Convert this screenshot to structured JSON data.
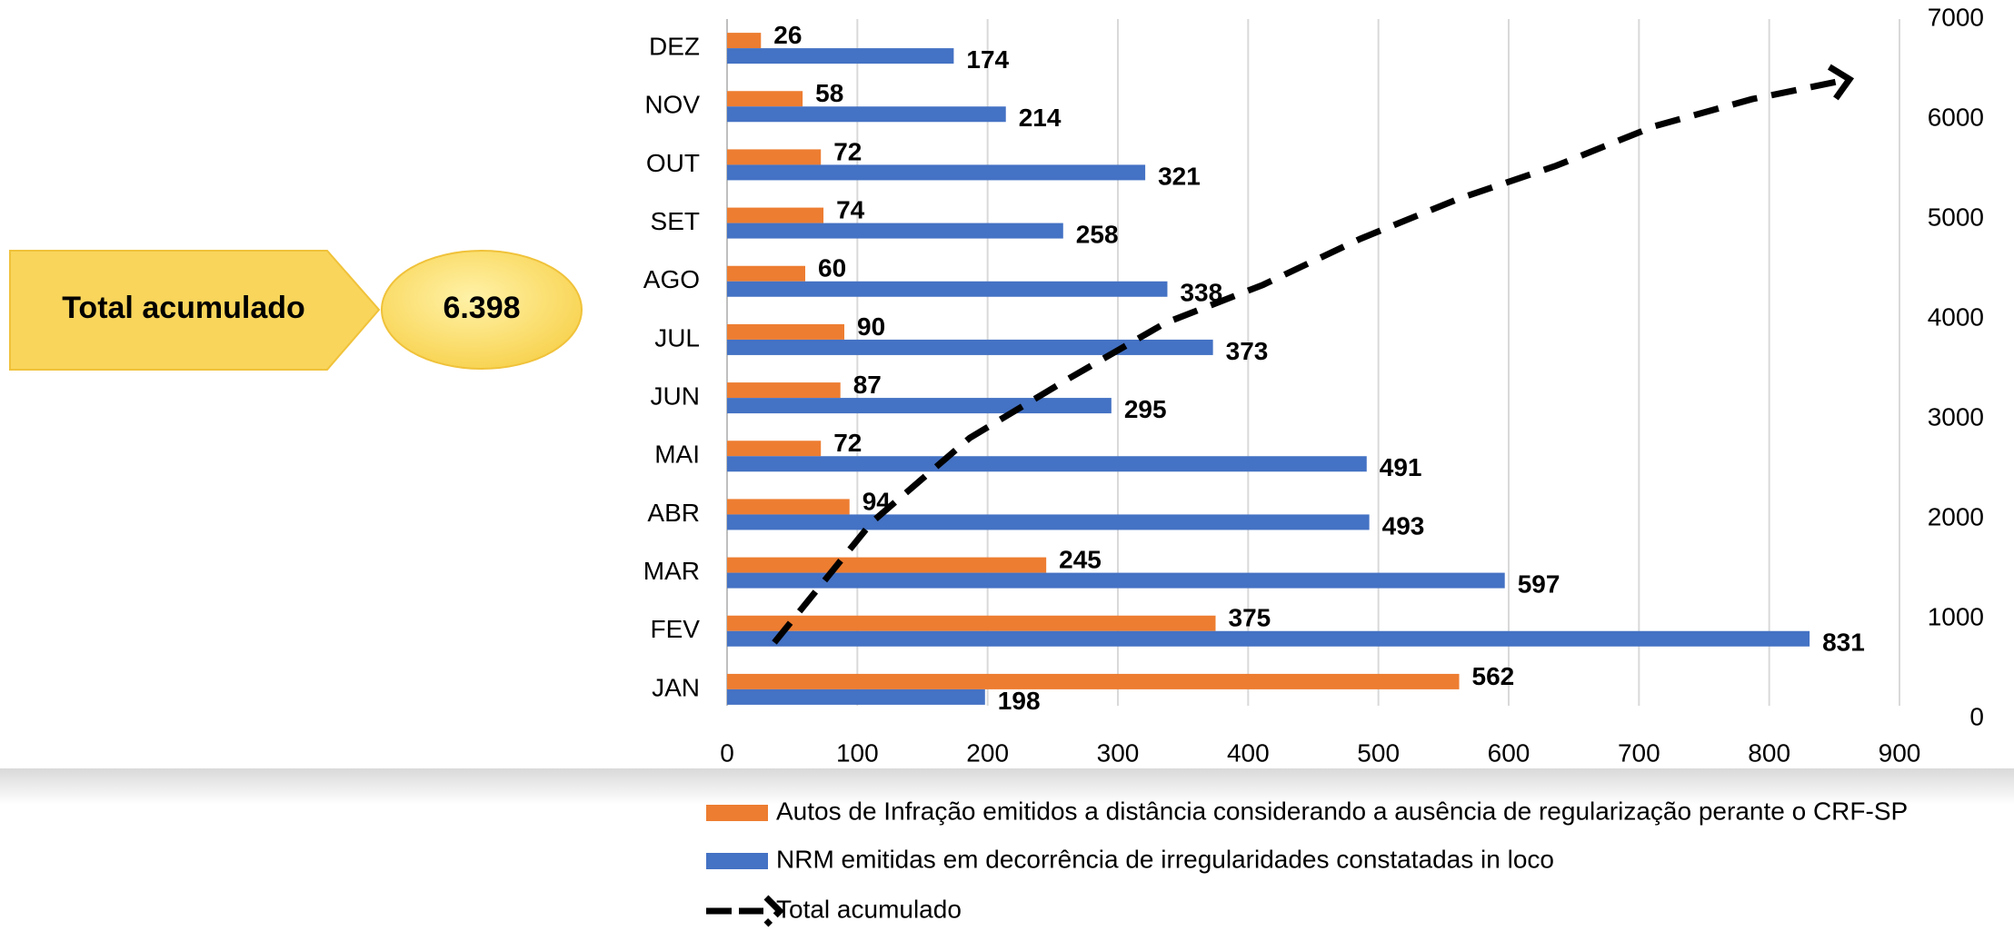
{
  "chart_data": {
    "type": "bar",
    "orientation": "horizontal",
    "categories": [
      "JAN",
      "FEV",
      "MAR",
      "ABR",
      "MAI",
      "JUN",
      "JUL",
      "AGO",
      "SET",
      "OUT",
      "NOV",
      "DEZ"
    ],
    "series": [
      {
        "name": "Autos de Infração emitidos a distância considerando a ausência de regularização perante o CRF-SP",
        "color": "#ed7d31",
        "values": [
          562,
          375,
          245,
          94,
          72,
          87,
          90,
          60,
          74,
          72,
          58,
          26
        ]
      },
      {
        "name": "NRM emitidas em decorrência de irregularidades constatadas in loco",
        "color": "#4472c4",
        "values": [
          198,
          831,
          597,
          493,
          491,
          295,
          373,
          338,
          258,
          321,
          214,
          174
        ]
      },
      {
        "name": "Total acumulado",
        "type": "line",
        "axis": "y2",
        "color": "#000000",
        "values": [
          760,
          1966,
          2808,
          3395,
          3958,
          4340,
          4803,
          5201,
          5533,
          5926,
          6198,
          6398
        ]
      }
    ],
    "xlim": [
      0,
      900
    ],
    "xticks": [
      0,
      100,
      200,
      300,
      400,
      500,
      600,
      700,
      800,
      900
    ],
    "y2lim": [
      0,
      7000
    ],
    "y2ticks": [
      0,
      1000,
      2000,
      3000,
      4000,
      5000,
      6000,
      7000
    ],
    "grid": true,
    "legend": "bottom"
  },
  "callout": {
    "label": "Total acumulado",
    "value": "6.398"
  }
}
